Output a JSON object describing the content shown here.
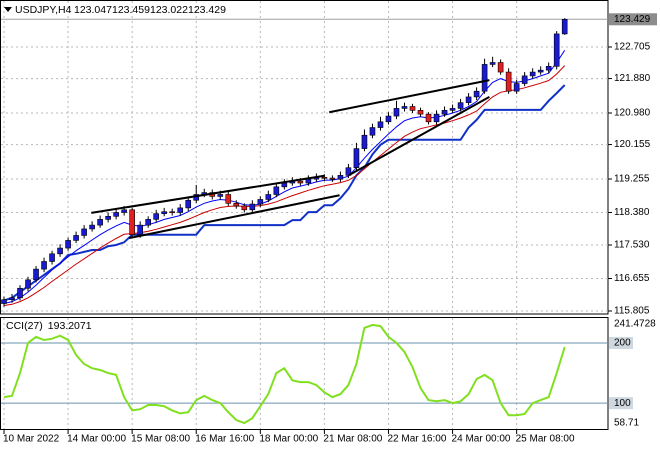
{
  "chart_data": {
    "type": "candlestick",
    "symbol": "USDJPY,H4",
    "categories": [
      "10 Mar 2022",
      null,
      null,
      null,
      null,
      null,
      null,
      null,
      "14 Mar 00:00",
      null,
      null,
      null,
      null,
      null,
      null,
      null,
      "15 Mar 08:00",
      null,
      null,
      null,
      null,
      null,
      null,
      null,
      "16 Mar 16:00",
      null,
      null,
      null,
      null,
      null,
      null,
      null,
      "18 Mar 00:00",
      null,
      null,
      null,
      null,
      null,
      null,
      null,
      "21 Mar 08:00",
      null,
      null,
      null,
      null,
      null,
      null,
      null,
      "22 Mar 16:00",
      null,
      null,
      null,
      null,
      null,
      null,
      null,
      "24 Mar 00:00",
      null,
      null,
      null,
      null,
      null,
      null,
      null,
      "25 Mar 08:00",
      null,
      null,
      null,
      null,
      null,
      null
    ],
    "open": [
      116.0,
      116.1,
      116.15,
      116.4,
      116.62,
      116.9,
      117.1,
      117.3,
      117.45,
      117.65,
      117.78,
      117.95,
      118.05,
      118.2,
      118.28,
      118.38,
      118.45,
      117.8,
      118.05,
      118.2,
      118.35,
      118.4,
      118.38,
      118.5,
      118.7,
      118.85,
      118.9,
      118.8,
      118.85,
      118.62,
      118.55,
      118.45,
      118.6,
      118.72,
      118.85,
      119.05,
      119.15,
      119.2,
      119.15,
      119.25,
      119.3,
      119.28,
      119.25,
      119.35,
      119.55,
      120.05,
      120.4,
      120.6,
      120.75,
      120.9,
      121.1,
      121.15,
      121.05,
      120.95,
      120.75,
      120.95,
      121.05,
      121.1,
      121.25,
      121.4,
      121.55,
      122.25,
      122.3,
      122.05,
      121.55,
      121.75,
      121.95,
      122.05,
      122.1,
      122.2,
      123.047
    ],
    "high": [
      116.18,
      116.25,
      116.48,
      116.7,
      116.98,
      117.2,
      117.38,
      117.55,
      117.72,
      117.88,
      118.05,
      118.15,
      118.3,
      118.38,
      118.48,
      118.55,
      118.5,
      118.15,
      118.28,
      118.45,
      118.5,
      118.48,
      118.6,
      118.8,
      119.1,
      119.0,
      118.98,
      118.95,
      118.92,
      118.7,
      118.62,
      118.7,
      118.8,
      118.95,
      119.15,
      119.25,
      119.3,
      119.28,
      119.35,
      119.4,
      119.38,
      119.35,
      119.45,
      119.65,
      120.2,
      120.55,
      120.7,
      120.88,
      121.0,
      121.3,
      121.25,
      121.22,
      121.12,
      121.0,
      121.05,
      121.15,
      121.2,
      121.35,
      121.5,
      121.65,
      122.4,
      122.45,
      122.38,
      122.15,
      121.85,
      122.05,
      122.15,
      122.2,
      122.3,
      123.12,
      123.459
    ],
    "low": [
      115.92,
      116.02,
      116.08,
      116.32,
      116.55,
      116.82,
      117.02,
      117.22,
      117.38,
      117.58,
      117.7,
      117.88,
      117.98,
      118.12,
      118.2,
      118.3,
      117.7,
      117.72,
      117.98,
      118.12,
      118.28,
      118.3,
      118.3,
      118.42,
      118.62,
      118.78,
      118.72,
      118.72,
      118.55,
      118.48,
      118.38,
      118.38,
      118.52,
      118.65,
      118.78,
      118.98,
      119.08,
      119.08,
      119.08,
      119.18,
      119.2,
      119.18,
      119.18,
      119.28,
      119.48,
      119.98,
      120.32,
      120.52,
      120.68,
      120.82,
      121.02,
      120.98,
      120.88,
      120.68,
      120.68,
      120.88,
      120.98,
      121.02,
      121.18,
      121.32,
      121.48,
      122.18,
      121.98,
      121.48,
      121.48,
      121.68,
      121.88,
      121.98,
      122.02,
      122.12,
      123.022
    ],
    "close": [
      116.1,
      116.15,
      116.4,
      116.62,
      116.9,
      117.1,
      117.3,
      117.45,
      117.65,
      117.78,
      117.95,
      118.05,
      118.2,
      118.28,
      118.38,
      118.45,
      117.8,
      118.05,
      118.2,
      118.35,
      118.4,
      118.38,
      118.5,
      118.7,
      118.85,
      118.9,
      118.8,
      118.85,
      118.62,
      118.55,
      118.45,
      118.6,
      118.72,
      118.85,
      119.05,
      119.15,
      119.2,
      119.15,
      119.25,
      119.3,
      119.28,
      119.25,
      119.35,
      119.55,
      120.05,
      120.4,
      120.6,
      120.75,
      120.9,
      121.1,
      121.15,
      121.05,
      120.95,
      120.75,
      120.95,
      121.05,
      121.1,
      121.25,
      121.4,
      121.55,
      122.25,
      122.3,
      122.05,
      121.55,
      121.75,
      121.95,
      122.05,
      122.1,
      122.2,
      123.047,
      123.429
    ],
    "up_color": "#1a1ad0",
    "down_color": "#e02020",
    "ylim": [
      115.753,
      123.855
    ],
    "yticks": [
      122.705,
      {
        "value": 121.88,
        "label": "121.880"
      },
      {
        "value": 120.98,
        "label": "120.980"
      },
      120.155,
      119.255,
      {
        "value": 118.38,
        "label": "118.380"
      },
      {
        "value": 117.53,
        "label": "117.530"
      },
      116.655,
      115.805
    ],
    "grid": true,
    "overlays": [
      {
        "color": "#1030c8",
        "width": 2,
        "values": [
          116.08,
          116.15,
          116.3,
          116.45,
          116.6,
          116.75,
          116.9,
          117.05,
          117.27,
          117.3,
          117.35,
          117.4,
          117.4,
          117.5,
          117.53,
          117.6,
          117.8,
          117.8,
          117.8,
          117.8,
          117.8,
          117.8,
          117.8,
          117.8,
          117.8,
          118.05,
          118.05,
          118.05,
          118.05,
          118.05,
          118.05,
          118.05,
          118.05,
          118.05,
          118.05,
          118.05,
          118.18,
          118.18,
          118.39,
          118.39,
          118.57,
          118.57,
          118.75,
          119.0,
          119.35,
          119.55,
          119.9,
          120.15,
          120.28,
          120.28,
          120.28,
          120.28,
          120.28,
          120.28,
          120.28,
          120.28,
          120.28,
          120.28,
          120.6,
          120.8,
          121.06,
          121.06,
          121.06,
          121.06,
          121.06,
          121.06,
          121.06,
          121.06,
          121.3,
          121.5,
          121.71
        ]
      },
      {
        "color": "#cc0000",
        "width": 1,
        "values": [
          115.95,
          115.98,
          116.05,
          116.15,
          116.28,
          116.42,
          116.58,
          116.73,
          116.88,
          117.03,
          117.17,
          117.31,
          117.45,
          117.58,
          117.7,
          117.81,
          117.83,
          117.85,
          117.89,
          117.94,
          118.0,
          118.06,
          118.12,
          118.2,
          118.29,
          118.38,
          118.45,
          118.51,
          118.54,
          118.55,
          118.54,
          118.54,
          118.56,
          118.6,
          118.66,
          118.74,
          118.82,
          118.89,
          118.96,
          119.02,
          119.08,
          119.12,
          119.16,
          119.22,
          119.35,
          119.52,
          119.7,
          119.87,
          120.04,
          120.21,
          120.37,
          120.48,
          120.57,
          120.62,
          120.67,
          120.72,
          120.78,
          120.85,
          120.93,
          121.03,
          121.22,
          121.4,
          121.52,
          121.56,
          121.59,
          121.64,
          121.7,
          121.76,
          121.83,
          122.0,
          122.22
        ]
      },
      {
        "color": "#0000ff",
        "width": 1,
        "values": [
          116.0,
          116.05,
          116.15,
          116.3,
          116.48,
          116.68,
          116.88,
          117.05,
          117.22,
          117.38,
          117.52,
          117.66,
          117.8,
          117.92,
          118.03,
          118.12,
          118.05,
          118.02,
          118.06,
          118.12,
          118.2,
          118.25,
          118.3,
          118.4,
          118.52,
          118.62,
          118.68,
          118.72,
          118.7,
          118.65,
          118.58,
          118.57,
          118.6,
          118.68,
          118.8,
          118.92,
          119.02,
          119.07,
          119.12,
          119.18,
          119.22,
          119.23,
          119.26,
          119.33,
          119.55,
          119.8,
          120.03,
          120.23,
          120.43,
          120.62,
          120.78,
          120.85,
          120.88,
          120.85,
          120.87,
          120.92,
          120.98,
          121.05,
          121.15,
          121.28,
          121.55,
          121.78,
          121.88,
          121.8,
          121.78,
          121.82,
          121.88,
          121.95,
          122.02,
          122.3,
          122.62
        ]
      }
    ],
    "trendlines": [
      {
        "x": [
          10.9,
          40
        ],
        "y": [
          118.37,
          119.34
        ]
      },
      {
        "x": [
          15.6,
          41.9
        ],
        "y": [
          117.71,
          118.83
        ]
      },
      {
        "x": [
          40.6,
          60.6
        ],
        "y": [
          121.0,
          121.84
        ]
      },
      {
        "x": [
          43.1,
          60.6
        ],
        "y": [
          119.36,
          121.4
        ]
      }
    ],
    "indicator": {
      "type": "line",
      "name": "CCI(27)",
      "color": "#80e020",
      "values": [
        110,
        112,
        150,
        200,
        210,
        205,
        207,
        212,
        205,
        180,
        165,
        158,
        155,
        150,
        147,
        110,
        88,
        90,
        97,
        97,
        95,
        88,
        83,
        85,
        105,
        112,
        105,
        100,
        85,
        72,
        67,
        75,
        95,
        115,
        150,
        158,
        138,
        135,
        135,
        130,
        118,
        110,
        115,
        130,
        165,
        225,
        230,
        228,
        210,
        200,
        185,
        160,
        125,
        105,
        103,
        105,
        100,
        103,
        115,
        140,
        147,
        138,
        100,
        80,
        80,
        82,
        100,
        105,
        110,
        150,
        193.2071
      ],
      "ylim": [
        58.71,
        241.4728
      ],
      "yticks": [
        241.4728,
        58.71
      ],
      "levels": [
        200,
        100
      ],
      "level_color": "#6a93b0"
    }
  }
}
